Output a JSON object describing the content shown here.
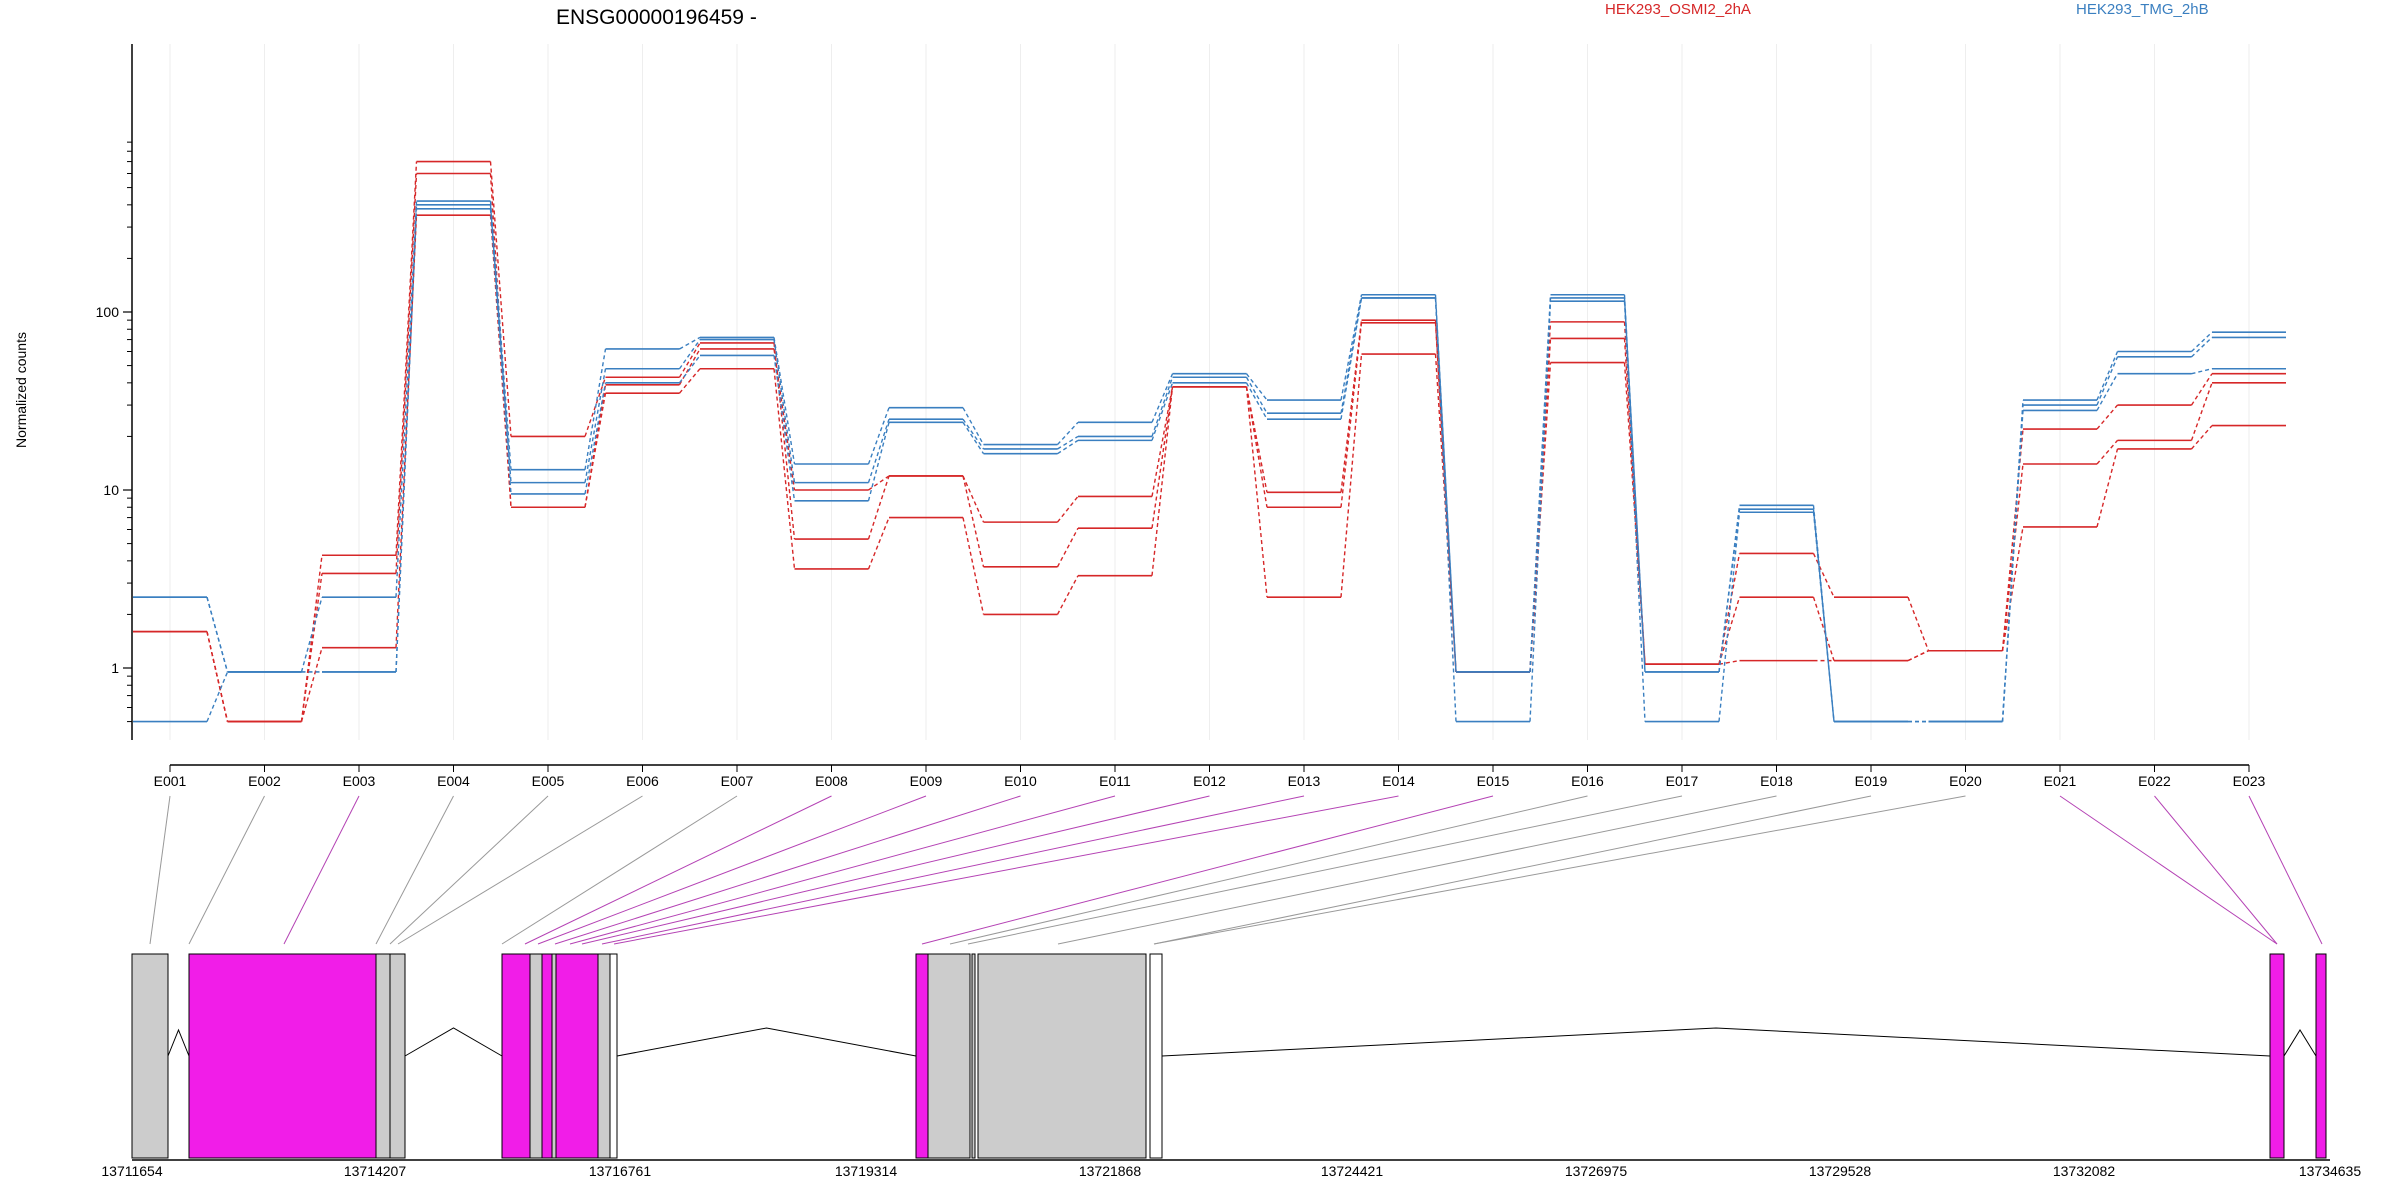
{
  "chart_data": {
    "type": "line",
    "title": "ENSG00000196459 -",
    "ylabel": "Normalized counts",
    "yscale": "log",
    "ylim": [
      0.5,
      900
    ],
    "ytick_labels": [
      "1",
      "10",
      "100"
    ],
    "ytick_values": [
      1,
      10,
      100
    ],
    "categories": [
      "E001",
      "E002",
      "E003",
      "E004",
      "E005",
      "E006",
      "E007",
      "E008",
      "E009",
      "E010",
      "E011",
      "E012",
      "E013",
      "E014",
      "E015",
      "E016",
      "E017",
      "E018",
      "E019",
      "E020",
      "E021",
      "E022",
      "E023"
    ],
    "legend": [
      {
        "label": "HEK293_OSMI2_2hA",
        "color": "#d62728"
      },
      {
        "label": "HEK293_TMG_2hB",
        "color": "#3a7fc0"
      }
    ],
    "series": [
      {
        "group": "red",
        "values": [
          1.6,
          0.5,
          4.3,
          700,
          20,
          43,
          67,
          5.3,
          12,
          6.6,
          9.2,
          38,
          9.7,
          90,
          0.95,
          88,
          1.05,
          4.4,
          2.5,
          1.25,
          22,
          30,
          45
        ]
      },
      {
        "group": "red",
        "values": [
          1.6,
          0.5,
          3.4,
          600,
          8,
          39,
          62,
          10,
          12,
          3.7,
          6.1,
          38,
          8,
          87,
          0.95,
          71,
          1.05,
          2.5,
          1.1,
          1.25,
          14,
          19,
          40
        ]
      },
      {
        "group": "red",
        "values": [
          1.6,
          0.5,
          1.3,
          350,
          8,
          35,
          48,
          3.6,
          7,
          2,
          3.3,
          38,
          2.5,
          58,
          0.95,
          52,
          1.05,
          1.1,
          1.1,
          1.25,
          6.2,
          17,
          23
        ]
      },
      {
        "group": "blue",
        "values": [
          2.5,
          0.95,
          2.5,
          420,
          13,
          62,
          72,
          14,
          29,
          18,
          24,
          45,
          32,
          125,
          0.95,
          125,
          0.95,
          8.2,
          0.5,
          0.5,
          32,
          60,
          77
        ]
      },
      {
        "group": "blue",
        "values": [
          2.5,
          0.95,
          0.95,
          400,
          11,
          48,
          70,
          11,
          25,
          17,
          20,
          43,
          27,
          120,
          0.95,
          120,
          0.95,
          7.8,
          0.5,
          0.5,
          30,
          56,
          72
        ]
      },
      {
        "group": "blue",
        "values": [
          0.5,
          0.95,
          0.95,
          380,
          9.5,
          40,
          57,
          8.7,
          24,
          16,
          19,
          40,
          25,
          120,
          0.5,
          115,
          0.5,
          7.5,
          0.5,
          0.5,
          28,
          45,
          48
        ]
      }
    ],
    "gene_model": {
      "coordinate_labels": [
        "13711654",
        "13714207",
        "13716761",
        "13719314",
        "13721868",
        "13724421",
        "13726975",
        "13729528",
        "13732082",
        "13734635"
      ],
      "highlight_color": "#f11de8",
      "exon_color": "#cccccc"
    }
  }
}
